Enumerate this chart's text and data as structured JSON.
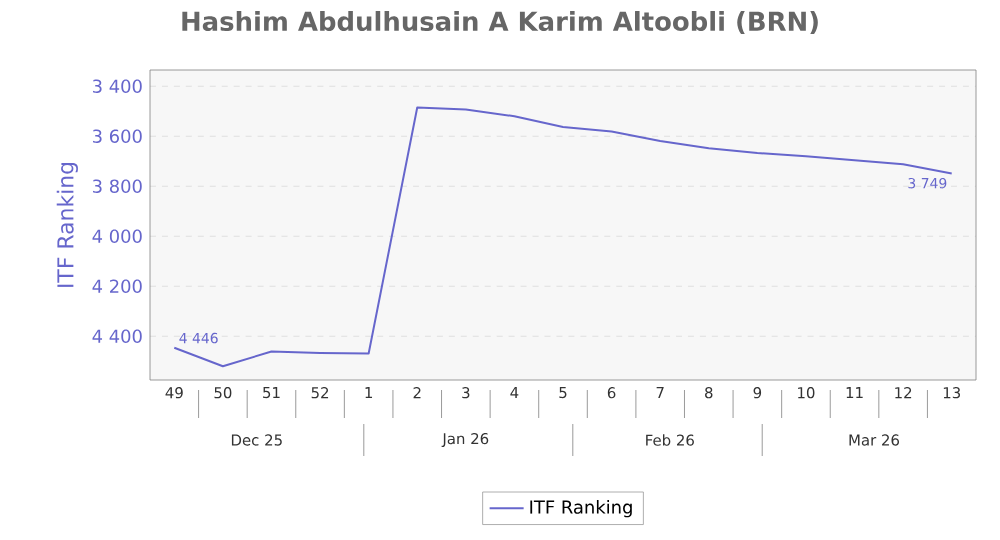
{
  "chart_data": {
    "type": "line",
    "title": "Hashim Abdulhusain A Karim Altoobli (BRN)",
    "ylabel": "ITF Ranking",
    "categories": [
      "49",
      "50",
      "51",
      "52",
      "1",
      "2",
      "3",
      "4",
      "5",
      "6",
      "7",
      "8",
      "9",
      "10",
      "11",
      "12",
      "13"
    ],
    "series": [
      {
        "name": "ITF Ranking",
        "color": "#6666cc",
        "values": [
          4446,
          4520,
          4461,
          4467,
          4469,
          3485,
          3493,
          3520,
          3563,
          3581,
          3619,
          3648,
          3667,
          3680,
          3696,
          3712,
          3749
        ],
        "value_labels": [
          "4 446",
          null,
          null,
          null,
          null,
          null,
          null,
          null,
          null,
          null,
          null,
          null,
          null,
          null,
          null,
          null,
          "3 749"
        ]
      }
    ],
    "ylim": [
      4575,
      3335
    ],
    "yticks": [
      {
        "value": 3400,
        "label": "3 400"
      },
      {
        "value": 3600,
        "label": "3 600"
      },
      {
        "value": 3800,
        "label": "3 800"
      },
      {
        "value": 4000,
        "label": "4 000"
      },
      {
        "value": 4200,
        "label": "4 200"
      },
      {
        "value": 4400,
        "label": "4 400"
      }
    ],
    "annotations": [
      "Dec 25",
      "Jan 26",
      "Feb 26",
      "Mar 26"
    ],
    "grid": "y",
    "legend": "bottom",
    "marker": "none",
    "line_style": "solid"
  }
}
